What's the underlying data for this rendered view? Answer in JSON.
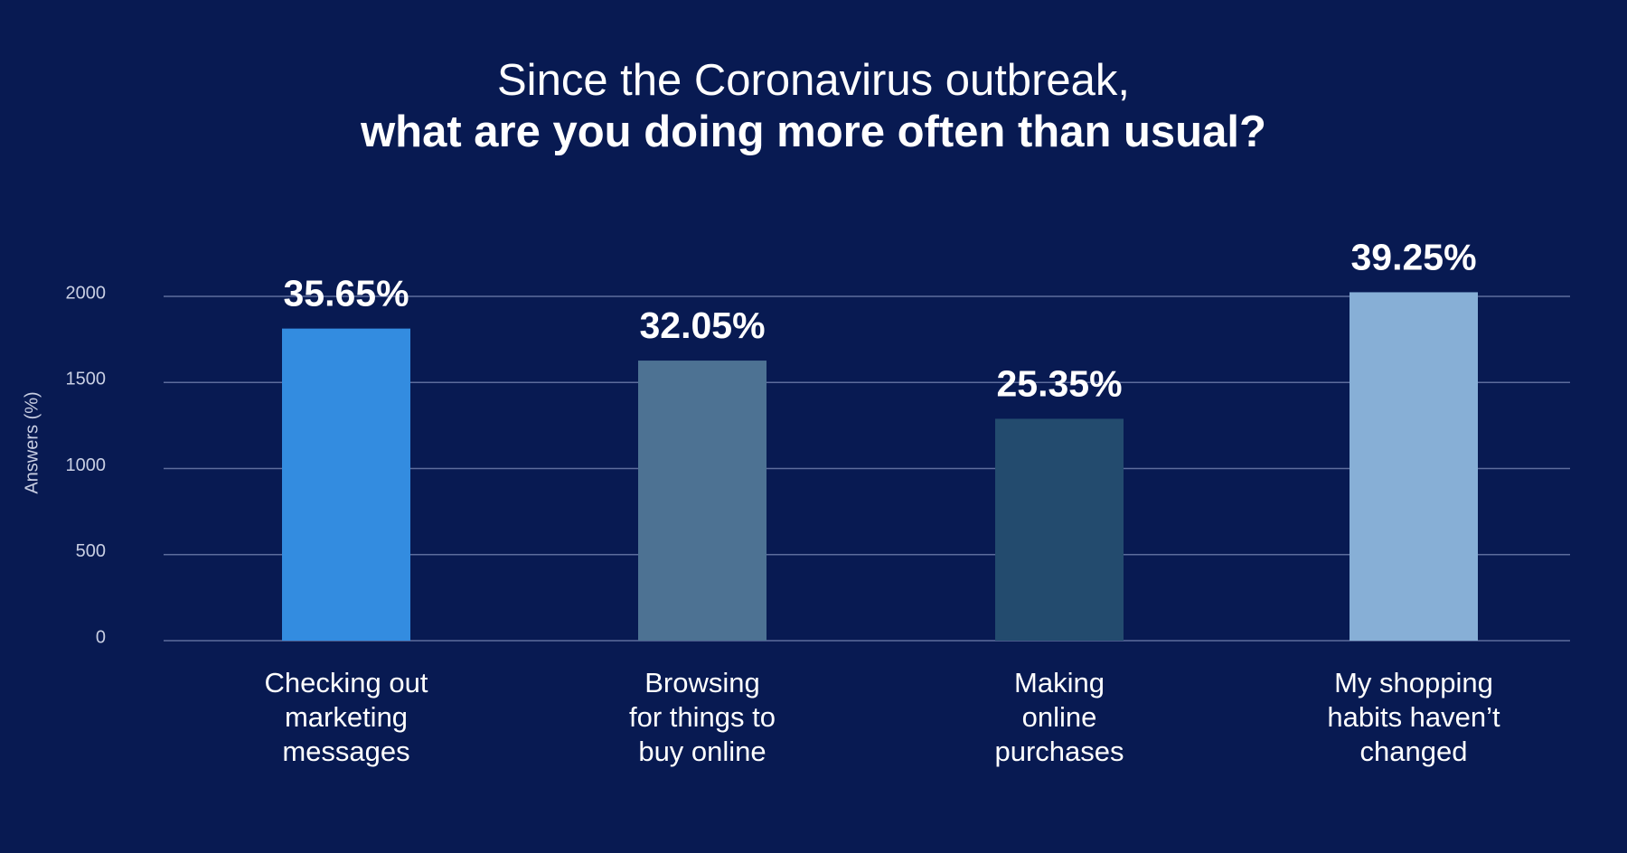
{
  "chart_data": {
    "type": "bar",
    "title": [
      "Since the Coronavirus outbreak,",
      "what are you doing more often than usual?"
    ],
    "y_label": "Answers (%)",
    "categories": [
      [
        "Checking out",
        "marketing",
        "messages"
      ],
      [
        "Browsing",
        "for things to",
        "buy online"
      ],
      [
        "Making",
        "online",
        "purchases"
      ],
      [
        "My shopping",
        "habits haven’t",
        "changed"
      ]
    ],
    "values": [
      1813,
      1627,
      1289,
      2024
    ],
    "value_labels": [
      "35.65%",
      "32.05%",
      "25.35%",
      "39.25%"
    ],
    "colors": [
      "#338ce0",
      "#4d7293",
      "#234b6e",
      "#87afd6"
    ],
    "ylim": [
      0,
      2000
    ],
    "yticks": [
      0,
      500,
      1000,
      1500,
      2000
    ],
    "grid": true
  }
}
